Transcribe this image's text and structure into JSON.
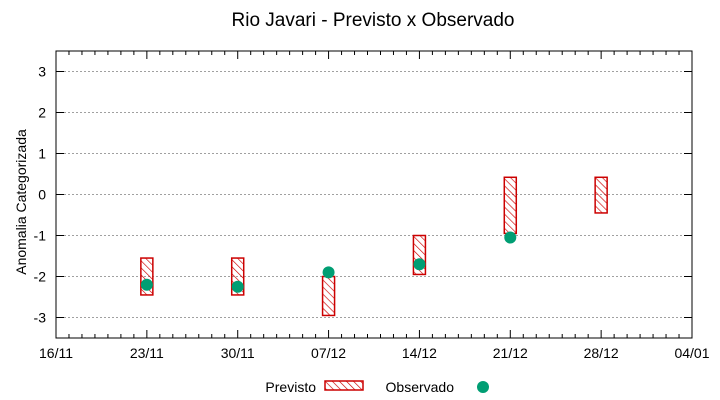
{
  "chart_data": {
    "type": "scatter",
    "title": "Rio Javari - Previsto x Observado",
    "xlabel": "",
    "ylabel": "Anomalia Categorizada",
    "ylim": [
      -3.5,
      3.5
    ],
    "yticks": [
      "3",
      "2",
      "1",
      "0",
      "-1",
      "-2",
      "-3"
    ],
    "ytick_values": [
      3,
      2,
      1,
      0,
      -1,
      -2,
      -3
    ],
    "xticks": [
      "16/11",
      "23/11",
      "30/11",
      "07/12",
      "14/12",
      "21/12",
      "28/12",
      "04/01"
    ],
    "x_minor_ticks_per_interval": 7,
    "grid": true,
    "legend_position": "bottom",
    "colors": {
      "previsto": "#cc0000",
      "observado": "#009e73",
      "grid": "#a0a0a0"
    },
    "series": [
      {
        "name": "Previsto",
        "kind": "range-box",
        "x": [
          "23/11",
          "30/11",
          "07/12",
          "14/12",
          "21/12",
          "28/12"
        ],
        "low": [
          -2.45,
          -2.45,
          -2.95,
          -1.95,
          -0.95,
          -0.45
        ],
        "high": [
          -1.55,
          -1.55,
          -2.0,
          -1.0,
          0.42,
          0.42
        ]
      },
      {
        "name": "Observado",
        "kind": "point",
        "x": [
          "23/11",
          "30/11",
          "07/12",
          "14/12",
          "21/12"
        ],
        "values": [
          -2.2,
          -2.25,
          -1.9,
          -1.7,
          -1.05
        ]
      }
    ]
  }
}
